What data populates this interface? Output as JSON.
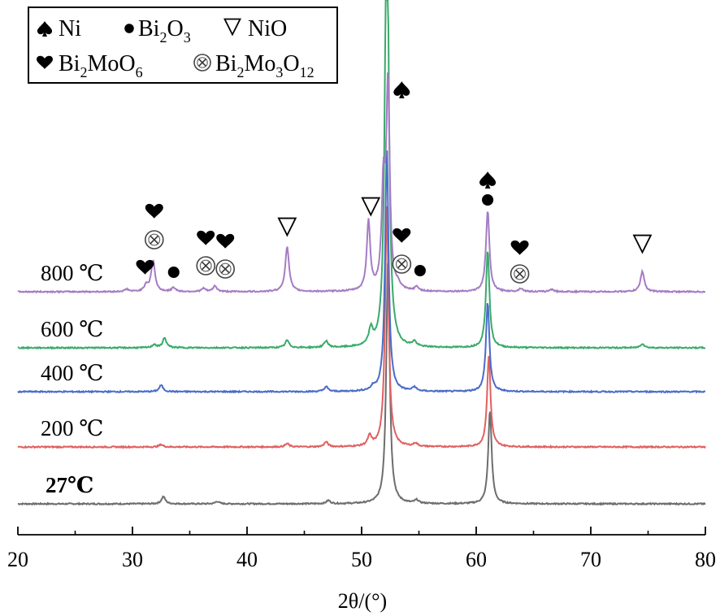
{
  "chart_data": {
    "type": "line",
    "xlabel": "2θ/(°)",
    "xlim": [
      20,
      80
    ],
    "x_ticks": [
      20,
      30,
      40,
      50,
      60,
      70,
      80
    ],
    "y_ticks_shown": false,
    "grid": false,
    "legend_position": "top-left",
    "legend": [
      {
        "symbol": "spade",
        "label": "Ni"
      },
      {
        "symbol": "dot",
        "label": "Bi",
        "sub1": "2",
        "mid": "O",
        "sub2": "3",
        "tail": ""
      },
      {
        "symbol": "triangle-down",
        "label": "NiO"
      },
      {
        "symbol": "heart",
        "label": "Bi",
        "sub1": "2",
        "mid": "MoO",
        "sub2": "6",
        "tail": ""
      },
      {
        "symbol": "otimes",
        "label": "Bi",
        "sub1": "2",
        "mid": "Mo",
        "sub2": "3",
        "tail": "O",
        "sub3": "12"
      }
    ],
    "series": [
      {
        "name": "27℃",
        "color": "#6d6d6d",
        "baseline": 0,
        "bold": true,
        "peaks": [
          [
            32.7,
            9
          ],
          [
            37.4,
            3
          ],
          [
            47.1,
            4
          ],
          [
            52.3,
            300
          ],
          [
            54.8,
            4
          ],
          [
            61.2,
            115
          ]
        ]
      },
      {
        "name": "200 ℃",
        "color": "#e06060",
        "baseline": 70,
        "peaks": [
          [
            32.5,
            3
          ],
          [
            43.5,
            4
          ],
          [
            46.9,
            6
          ],
          [
            50.7,
            12
          ],
          [
            52.2,
            300
          ],
          [
            54.7,
            4
          ],
          [
            61.1,
            112
          ]
        ]
      },
      {
        "name": "400 ℃",
        "color": "#4a6cc8",
        "baseline": 138,
        "peaks": [
          [
            32.5,
            8
          ],
          [
            46.9,
            6
          ],
          [
            51.0,
            4
          ],
          [
            52.2,
            300
          ],
          [
            54.6,
            5
          ],
          [
            61.0,
            110
          ]
        ]
      },
      {
        "name": "600 ℃",
        "color": "#3aaa6a",
        "baseline": 192,
        "peaks": [
          [
            31.9,
            4
          ],
          [
            32.8,
            12
          ],
          [
            43.5,
            9
          ],
          [
            46.9,
            8
          ],
          [
            50.8,
            19
          ],
          [
            52.2,
            630
          ],
          [
            54.6,
            6
          ],
          [
            61.0,
            120
          ],
          [
            74.5,
            5
          ]
        ]
      },
      {
        "name": "800 ℃",
        "color": "#a57cc4",
        "baseline": 261,
        "peaks": [
          [
            29.5,
            3
          ],
          [
            31.2,
            8
          ],
          [
            31.8,
            38
          ],
          [
            33.6,
            5
          ],
          [
            36.2,
            4
          ],
          [
            37.2,
            7
          ],
          [
            43.5,
            55
          ],
          [
            50.6,
            85
          ],
          [
            51.9,
            120
          ],
          [
            52.3,
            250
          ],
          [
            53.2,
            5
          ],
          [
            54.8,
            5
          ],
          [
            61.0,
            100
          ],
          [
            63.9,
            4
          ],
          [
            66.6,
            3
          ],
          [
            74.5,
            25
          ]
        ]
      }
    ],
    "annotations": [
      {
        "x": 31.1,
        "y": 291,
        "symbol": "heart"
      },
      {
        "x": 31.9,
        "y": 360,
        "symbol": "heart"
      },
      {
        "x": 31.9,
        "y": 325,
        "symbol": "otimes"
      },
      {
        "x": 33.6,
        "y": 285,
        "symbol": "dot"
      },
      {
        "x": 36.4,
        "y": 327,
        "symbol": "heart"
      },
      {
        "x": 36.4,
        "y": 293,
        "symbol": "otimes"
      },
      {
        "x": 38.1,
        "y": 323,
        "symbol": "heart"
      },
      {
        "x": 38.1,
        "y": 289,
        "symbol": "otimes"
      },
      {
        "x": 43.5,
        "y": 341,
        "symbol": "triangle-down"
      },
      {
        "x": 50.8,
        "y": 366,
        "symbol": "triangle-down"
      },
      {
        "x": 53.5,
        "y": 510,
        "symbol": "spade"
      },
      {
        "x": 53.5,
        "y": 330,
        "symbol": "heart"
      },
      {
        "x": 53.5,
        "y": 295,
        "symbol": "otimes"
      },
      {
        "x": 55.1,
        "y": 287,
        "symbol": "dot"
      },
      {
        "x": 61.0,
        "y": 399,
        "symbol": "spade"
      },
      {
        "x": 61.0,
        "y": 374,
        "symbol": "dot"
      },
      {
        "x": 63.8,
        "y": 315,
        "symbol": "heart"
      },
      {
        "x": 63.8,
        "y": 283,
        "symbol": "otimes"
      },
      {
        "x": 74.5,
        "y": 320,
        "symbol": "triangle-down"
      }
    ]
  }
}
